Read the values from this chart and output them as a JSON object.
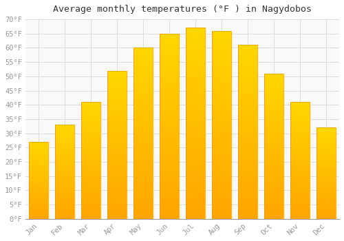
{
  "title": "Average monthly temperatures (°F ) in Nagydobos",
  "months": [
    "Jan",
    "Feb",
    "Mar",
    "Apr",
    "May",
    "Jun",
    "Jul",
    "Aug",
    "Sep",
    "Oct",
    "Nov",
    "Dec"
  ],
  "values": [
    27,
    33,
    41,
    52,
    60,
    65,
    67,
    66,
    61,
    51,
    41,
    32
  ],
  "bar_color_top": "#FFB300",
  "bar_color_bottom": "#FFA500",
  "background_color": "#FFFFFF",
  "plot_bg_color": "#F9F9F9",
  "grid_color": "#DDDDDD",
  "ylim": [
    0,
    70
  ],
  "yticks": [
    0,
    5,
    10,
    15,
    20,
    25,
    30,
    35,
    40,
    45,
    50,
    55,
    60,
    65,
    70
  ],
  "title_fontsize": 9.5,
  "tick_fontsize": 7.5,
  "title_font": "monospace",
  "tick_font": "monospace",
  "tick_color": "#999999",
  "bar_width": 0.75
}
